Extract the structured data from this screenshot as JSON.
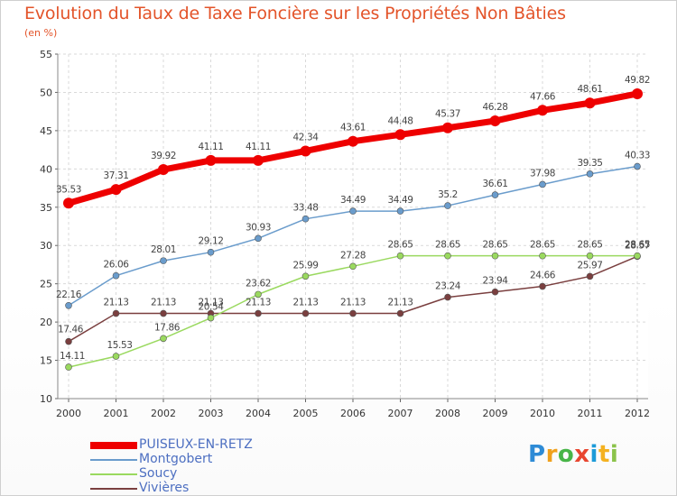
{
  "chart_data": {
    "type": "line",
    "title": "Evolution du Taux de Taxe Foncière sur les Propriétés Non Bâties",
    "unit_label": "(en %)",
    "x": [
      "2000",
      "2001",
      "2002",
      "2003",
      "2004",
      "2005",
      "2006",
      "2007",
      "2008",
      "2009",
      "2010",
      "2011",
      "2012"
    ],
    "ylim": [
      10,
      55
    ],
    "yticks": [
      "10",
      "15",
      "20",
      "25",
      "30",
      "35",
      "40",
      "45",
      "50",
      "55"
    ],
    "grid": true,
    "legend_position": "bottom-left",
    "series": [
      {
        "name": "PUISEUX-EN-RETZ",
        "color": "#ee0000",
        "values": [
          35.53,
          37.31,
          39.92,
          41.11,
          41.11,
          42.34,
          43.61,
          44.48,
          45.37,
          46.28,
          47.66,
          48.61,
          49.82
        ],
        "labels": [
          "35.53",
          "37.31",
          "39.92",
          "41.11",
          "41.11",
          "42.34",
          "43.61",
          "44.48",
          "45.37",
          "46.28",
          "47.66",
          "48.61",
          "49.82"
        ]
      },
      {
        "name": "Montgobert",
        "color": "#6a9ccc",
        "values": [
          22.16,
          26.06,
          28.01,
          29.12,
          30.93,
          33.48,
          34.49,
          34.49,
          35.2,
          36.61,
          37.98,
          39.35,
          40.33
        ],
        "labels": [
          "22.16",
          "26.06",
          "28.01",
          "29.12",
          "30.93",
          "33.48",
          "34.49",
          "34.49",
          "35.2",
          "36.61",
          "37.98",
          "39.35",
          "40.33"
        ]
      },
      {
        "name": "Soucy",
        "color": "#9ad95f",
        "values": [
          14.11,
          15.53,
          17.86,
          20.54,
          23.62,
          25.99,
          27.28,
          28.65,
          28.65,
          28.65,
          28.65,
          28.65,
          28.65
        ],
        "labels": [
          "14.11",
          "15.53",
          "17.86",
          "20.54",
          "23.62",
          "25.99",
          "27.28",
          "28.65",
          "28.65",
          "28.65",
          "28.65",
          "28.65",
          "28.65"
        ]
      },
      {
        "name": "Vivières",
        "color": "#7a3f3f",
        "values": [
          17.46,
          21.13,
          21.13,
          21.13,
          21.13,
          21.13,
          21.13,
          21.13,
          23.24,
          23.94,
          24.66,
          25.97,
          28.57
        ],
        "labels": [
          "17.46",
          "21.13",
          "21.13",
          "21.13",
          "21.13",
          "21.13",
          "21.13",
          "21.13",
          "23.24",
          "23.94",
          "24.66",
          "25.97",
          "28.57"
        ]
      }
    ]
  },
  "logo": {
    "letters": [
      "P",
      "r",
      "o",
      "x",
      "i",
      "t",
      "i"
    ],
    "colors": [
      "#2e8bd6",
      "#f0a11c",
      "#48b548",
      "#e8452f",
      "#1d9bd8",
      "#f4b120",
      "#8bc34a"
    ]
  }
}
